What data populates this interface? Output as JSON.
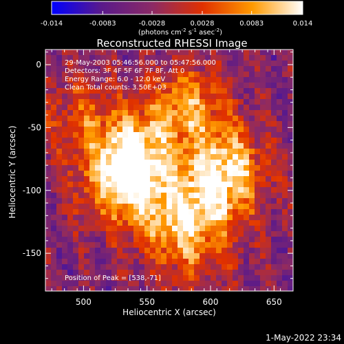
{
  "chart_data": {
    "type": "heatmap",
    "title": "Reconstructed RHESSI Image",
    "xlabel": "Heliocentric X (arcsec)",
    "ylabel": "Heliocentric Y (arcsec)",
    "xlim": [
      470,
      665
    ],
    "ylim": [
      -180,
      12
    ],
    "xticks": [
      500,
      550,
      600,
      650
    ],
    "yticks": [
      0,
      -50,
      -100,
      -150
    ],
    "colorbar": {
      "min": -0.014,
      "max": 0.014,
      "ticks": [
        "-0.014",
        "-0.0083",
        "-0.0028",
        "0.0028",
        "0.0083",
        "0.014"
      ],
      "label_base": "(photons cm",
      "label_sup1": "-2",
      "label_mid": " s",
      "label_sup2": "-1",
      "label_mid2": " asec",
      "label_sup3": "-2",
      "label_end": ")",
      "colors": [
        "#0000ff",
        "#5a1a8a",
        "#8b2a66",
        "#e03000",
        "#ff9a00",
        "#ffffff"
      ]
    },
    "annotations": [
      "29-May-2003 05:46:56.000 to 05:47:56.000",
      "Detectors: 3F 4F 5F 6F 7F 8F, Att 0",
      "Energy Range: 6.0 - 12.0 keV",
      "Clean     Total counts: 3.50E+03"
    ],
    "peak_label": "Position of Peak = [538,-71]",
    "peak": [
      538,
      -71
    ],
    "sources": [
      {
        "x": 540,
        "y": -72,
        "amp": 1.0
      },
      {
        "x": 580,
        "y": -32,
        "amp": 0.75
      },
      {
        "x": 612,
        "y": -78,
        "amp": 0.85
      },
      {
        "x": 560,
        "y": -118,
        "amp": 0.6
      },
      {
        "x": 525,
        "y": -95,
        "amp": 0.65
      },
      {
        "x": 585,
        "y": -150,
        "amp": 0.45
      },
      {
        "x": 498,
        "y": -40,
        "amp": 0.45
      },
      {
        "x": 600,
        "y": -110,
        "amp": 0.7
      }
    ]
  },
  "footer": {
    "timestamp": "1-May-2022 23:34"
  }
}
